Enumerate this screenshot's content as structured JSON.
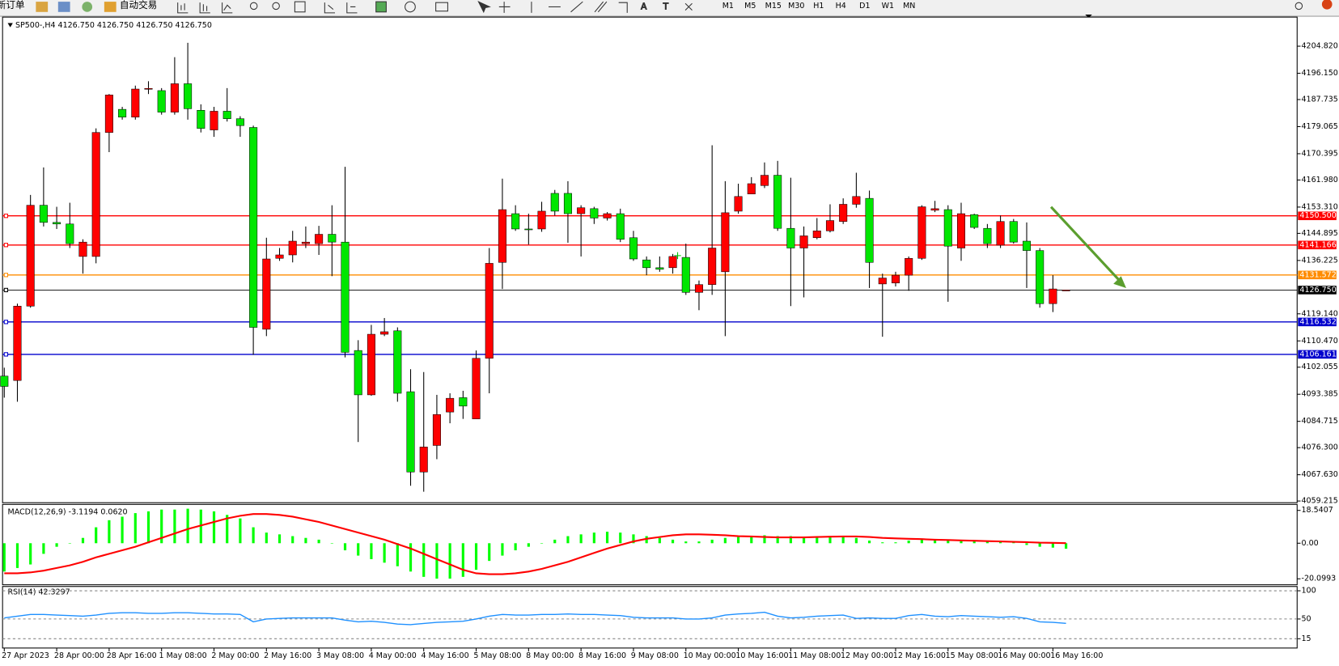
{
  "toolbar": {
    "new_order": "新订单",
    "auto_trading": "自动交易",
    "timeframes": [
      "M1",
      "M5",
      "M15",
      "M30",
      "H1",
      "H4",
      "D1",
      "W1",
      "MN"
    ]
  },
  "chart_data": [
    {
      "type": "candlestick",
      "title": "SP500-,H4  4126.750 4126.750 4126.750 4126.750",
      "categories": [
        "27 Apr 2023",
        null,
        null,
        null,
        "28 Apr 00:00",
        null,
        null,
        null,
        "28 Apr 16:00",
        null,
        null,
        null,
        "1 May 08:00",
        null,
        null,
        null,
        "2 May 00:00",
        null,
        null,
        null,
        "2 May 16:00",
        null,
        null,
        null,
        "3 May 08:00",
        null,
        null,
        null,
        "4 May 00:00",
        null,
        null,
        null,
        "4 May 16:00",
        null,
        null,
        null,
        "5 May 08:00",
        null,
        null,
        null,
        "8 May 00:00",
        null,
        null,
        null,
        "8 May 16:00",
        null,
        null,
        null,
        "9 May 08:00",
        null,
        null,
        null,
        "10 May 00:00",
        null,
        null,
        null,
        "10 May 16:00",
        null,
        null,
        null,
        "11 May 08:00",
        null,
        null,
        null,
        "12 May 00:00",
        null,
        null,
        null,
        "12 May 16:00",
        null,
        null,
        null,
        "15 May 08:00",
        null,
        null,
        null,
        "16 May 00:00",
        null,
        null,
        null,
        "16 May 16:00",
        null
      ],
      "open": [
        4099.2,
        4097.8,
        4121.6,
        4153.9,
        4148.4,
        4147.9,
        4137.5,
        4137.5,
        4177.2,
        4184.6,
        4182.1,
        4191.1,
        4190.6,
        4183.7,
        4192.8,
        4184.3,
        4178.0,
        4184.0,
        4181.6,
        4178.8,
        4114.2,
        4136.9,
        4138.0,
        4141.6,
        4141.6,
        4144.6,
        4142.1,
        4107.4,
        4093.2,
        4112.6,
        4113.7,
        4094.2,
        4068.5,
        4077.0,
        4087.7,
        4092.3,
        4085.5,
        4104.9,
        4135.6,
        4151.2,
        4146.3,
        4146.3,
        4157.7,
        4157.7,
        4151.2,
        4152.8,
        4149.8,
        4151.2,
        4143.5,
        4136.4,
        4133.9,
        4133.9,
        4137.2,
        4126.0,
        4128.5,
        4132.6,
        4152.0,
        4157.5,
        4160.2,
        4163.5,
        4146.5,
        4140.2,
        4143.5,
        4145.7,
        4148.7,
        4154.2,
        4156.1,
        4128.7,
        4129.0,
        4131.5,
        4136.9,
        4152.3,
        4152.5,
        4140.2,
        4150.9,
        4146.5,
        4141.1,
        4148.7,
        4142.4,
        4139.4,
        4122.4,
        4126.75
      ],
      "high": [
        4101.9,
        4122.4,
        4157.2,
        4166.0,
        4153.4,
        4154.7,
        4143.0,
        4178.5,
        4189.5,
        4185.4,
        4192.2,
        4193.6,
        4191.4,
        4201.3,
        4205.9,
        4186.2,
        4185.4,
        4191.4,
        4182.4,
        4179.4,
        4143.5,
        4140.2,
        4145.7,
        4147.1,
        4147.3,
        4153.9,
        4166.2,
        4110.7,
        4115.6,
        4117.8,
        4114.8,
        4101.4,
        4100.5,
        4093.2,
        4093.7,
        4094.5,
        4107.4,
        4140.2,
        4162.4,
        4153.9,
        4151.2,
        4155.0,
        4158.8,
        4161.6,
        4153.9,
        4153.4,
        4151.7,
        4152.8,
        4145.7,
        4137.5,
        4137.5,
        4138.3,
        4141.6,
        4129.8,
        4173.1,
        4161.6,
        4160.8,
        4162.9,
        4167.6,
        4168.1,
        4162.7,
        4147.1,
        4149.8,
        4154.2,
        4156.1,
        4164.3,
        4158.6,
        4132.0,
        4132.6,
        4137.5,
        4153.9,
        4155.3,
        4153.9,
        4154.7,
        4151.2,
        4147.9,
        4150.6,
        4149.5,
        4148.4,
        4140.2,
        4131.5,
        4126.75
      ],
      "low": [
        4092.3,
        4091.0,
        4121.1,
        4147.1,
        4146.3,
        4140.2,
        4132.0,
        4135.3,
        4170.9,
        4181.3,
        4181.3,
        4189.5,
        4182.9,
        4182.9,
        4181.3,
        4177.2,
        4175.8,
        4180.7,
        4175.8,
        4106.0,
        4112.0,
        4136.1,
        4135.6,
        4140.2,
        4138.0,
        4131.2,
        4105.2,
        4078.1,
        4092.9,
        4112.0,
        4091.0,
        4064.1,
        4062.2,
        4072.6,
        4084.1,
        4085.5,
        4085.5,
        4093.7,
        4127.1,
        4145.7,
        4141.3,
        4145.4,
        4150.6,
        4141.9,
        4137.5,
        4147.9,
        4149.0,
        4142.1,
        4136.1,
        4131.5,
        4132.6,
        4132.0,
        4125.2,
        4120.3,
        4125.2,
        4112.0,
        4151.2,
        4157.5,
        4159.4,
        4145.7,
        4121.6,
        4124.4,
        4143.0,
        4145.2,
        4147.9,
        4153.1,
        4127.4,
        4111.8,
        4127.9,
        4126.5,
        4136.4,
        4151.7,
        4123.0,
        4136.1,
        4146.3,
        4140.2,
        4140.2,
        4141.6,
        4127.4,
        4121.1,
        4119.7,
        4126.75
      ],
      "close": [
        4095.9,
        4121.6,
        4153.9,
        4148.4,
        4147.9,
        4141.6,
        4142.1,
        4177.2,
        4189.2,
        4182.1,
        4191.1,
        4191.3,
        4183.7,
        4192.8,
        4184.8,
        4178.5,
        4184.0,
        4181.6,
        4179.4,
        4114.8,
        4136.7,
        4138.0,
        4142.4,
        4142.1,
        4144.6,
        4142.1,
        4106.8,
        4093.2,
        4112.6,
        4113.4,
        4093.7,
        4068.5,
        4076.5,
        4086.9,
        4092.1,
        4089.6,
        4104.9,
        4135.3,
        4152.5,
        4146.3,
        4146.1,
        4152.0,
        4152.0,
        4151.2,
        4153.1,
        4149.8,
        4151.2,
        4143.0,
        4136.7,
        4133.9,
        4133.4,
        4137.5,
        4126.0,
        4128.5,
        4140.2,
        4151.5,
        4156.7,
        4160.8,
        4163.5,
        4146.5,
        4140.2,
        4144.1,
        4145.7,
        4149.0,
        4154.2,
        4156.7,
        4135.6,
        4130.6,
        4131.5,
        4136.9,
        4153.4,
        4152.8,
        4140.8,
        4151.2,
        4146.8,
        4141.6,
        4148.7,
        4142.1,
        4139.4,
        4122.4,
        4127.1,
        4126.75
      ],
      "up_color": "#ff0000",
      "down_color": "#00e600",
      "ylim": [
        4058.67,
        4214.13
      ],
      "yticks": [
        {
          "value": 4204.82,
          "label": "4204.820"
        },
        {
          "value": 4196.15,
          "label": "4196.150"
        },
        4187.735,
        4179.065,
        4170.395,
        {
          "value": 4161.98,
          "label": "4161.980"
        },
        {
          "value": 4153.31,
          "label": "4153.310"
        },
        4144.895,
        4136.225,
        {
          "value": 4119.14,
          "label": "4119.140"
        },
        {
          "value": 4110.47,
          "label": "4110.470"
        },
        4102.055,
        4093.385,
        4084.715,
        {
          "value": 4076.3,
          "label": "4076.300"
        },
        {
          "value": 4067.63,
          "label": "4067.630"
        },
        4059.215
      ],
      "price_lines": [
        {
          "value": 4150.5,
          "label": "4150.500",
          "color": "#ff0000"
        },
        {
          "value": 4141.166,
          "label": "4141.166",
          "color": "#ff0000"
        },
        {
          "value": 4131.572,
          "label": "4131.572",
          "color": "#ff8c00"
        },
        {
          "value": 4126.75,
          "label": "4126.750",
          "color": "#000000"
        },
        {
          "value": 4116.532,
          "label": "4116.532",
          "color": "#0000cd"
        },
        {
          "value": 4106.161,
          "label": "4106.161",
          "color": "#0000cd"
        }
      ]
    },
    {
      "type": "macd",
      "title": "MACD(12,26,9) -3.1194 0.0620",
      "values": [
        -16,
        -14,
        -12,
        -6,
        -2,
        0,
        3,
        9,
        13,
        15,
        17,
        18,
        19,
        19,
        19.5,
        19,
        18,
        16,
        14,
        9,
        6,
        5,
        4,
        3,
        2,
        0,
        -4,
        -7,
        -9,
        -11,
        -13,
        -16,
        -19,
        -20,
        -20,
        -19,
        -15,
        -10,
        -7,
        -4,
        -2,
        0,
        2,
        4,
        5,
        6,
        6.5,
        6,
        5,
        4,
        3,
        2,
        1,
        1,
        2,
        3,
        3.5,
        4,
        4.5,
        4,
        4,
        3.5,
        3.5,
        3.5,
        4,
        3,
        1.5,
        0.5,
        0.5,
        1.5,
        2,
        2,
        2,
        1.5,
        1.5,
        1.5,
        1,
        0.5,
        -1,
        -2,
        -2.5,
        -3.1194
      ],
      "signal": [
        -17,
        -17,
        -16.5,
        -15.5,
        -14,
        -12.5,
        -10.5,
        -8,
        -6,
        -4,
        -2,
        0.5,
        3,
        5.5,
        8,
        10,
        12,
        14,
        15.5,
        16.5,
        16.5,
        16,
        15,
        13.5,
        12,
        10,
        8,
        6,
        4,
        2,
        -0.5,
        -3,
        -6,
        -9,
        -12,
        -15,
        -17,
        -17.5,
        -17.5,
        -17,
        -16,
        -14.5,
        -12.5,
        -10.5,
        -8,
        -5.5,
        -3,
        -1,
        1,
        2.5,
        3.5,
        4.5,
        5,
        5,
        4.8,
        4.5,
        4,
        3.8,
        3.5,
        3.3,
        3.3,
        3.3,
        3.5,
        3.7,
        3.8,
        3.8,
        3.5,
        3,
        2.7,
        2.5,
        2.3,
        2,
        1.8,
        1.6,
        1.4,
        1.2,
        1,
        0.8,
        0.6,
        0.3,
        0.2,
        0.062
      ],
      "color": "#00ff00",
      "signal_color": "#ff0000",
      "ylim": [
        -23.48,
        21.92
      ],
      "yticks": [
        18.5407,
        {
          "value": 0,
          "label": "0.00"
        },
        -20.0993
      ]
    },
    {
      "type": "line",
      "title": "RSI(14) 42.3297",
      "values": [
        52,
        55,
        58,
        58,
        57,
        56,
        55,
        57,
        60,
        61,
        61,
        60,
        60,
        61,
        61,
        60,
        59,
        59,
        58,
        45,
        50,
        51,
        52,
        52,
        52,
        52,
        48,
        45,
        46,
        44,
        41,
        40,
        42,
        44,
        45,
        46,
        50,
        55,
        58,
        57,
        57,
        58,
        58,
        59,
        58,
        58,
        57,
        56,
        53,
        52,
        52,
        52,
        50,
        50,
        52,
        57,
        59,
        60,
        62,
        55,
        52,
        53,
        55,
        56,
        57,
        51,
        52,
        51,
        51,
        56,
        58,
        55,
        54,
        56,
        55,
        54,
        53,
        54,
        51,
        45,
        44,
        42.3297
      ],
      "color": "#1e90ff",
      "ylim": [
        -1.5,
        107.6
      ],
      "yticks": [
        100,
        50,
        15
      ],
      "grid": true
    }
  ]
}
